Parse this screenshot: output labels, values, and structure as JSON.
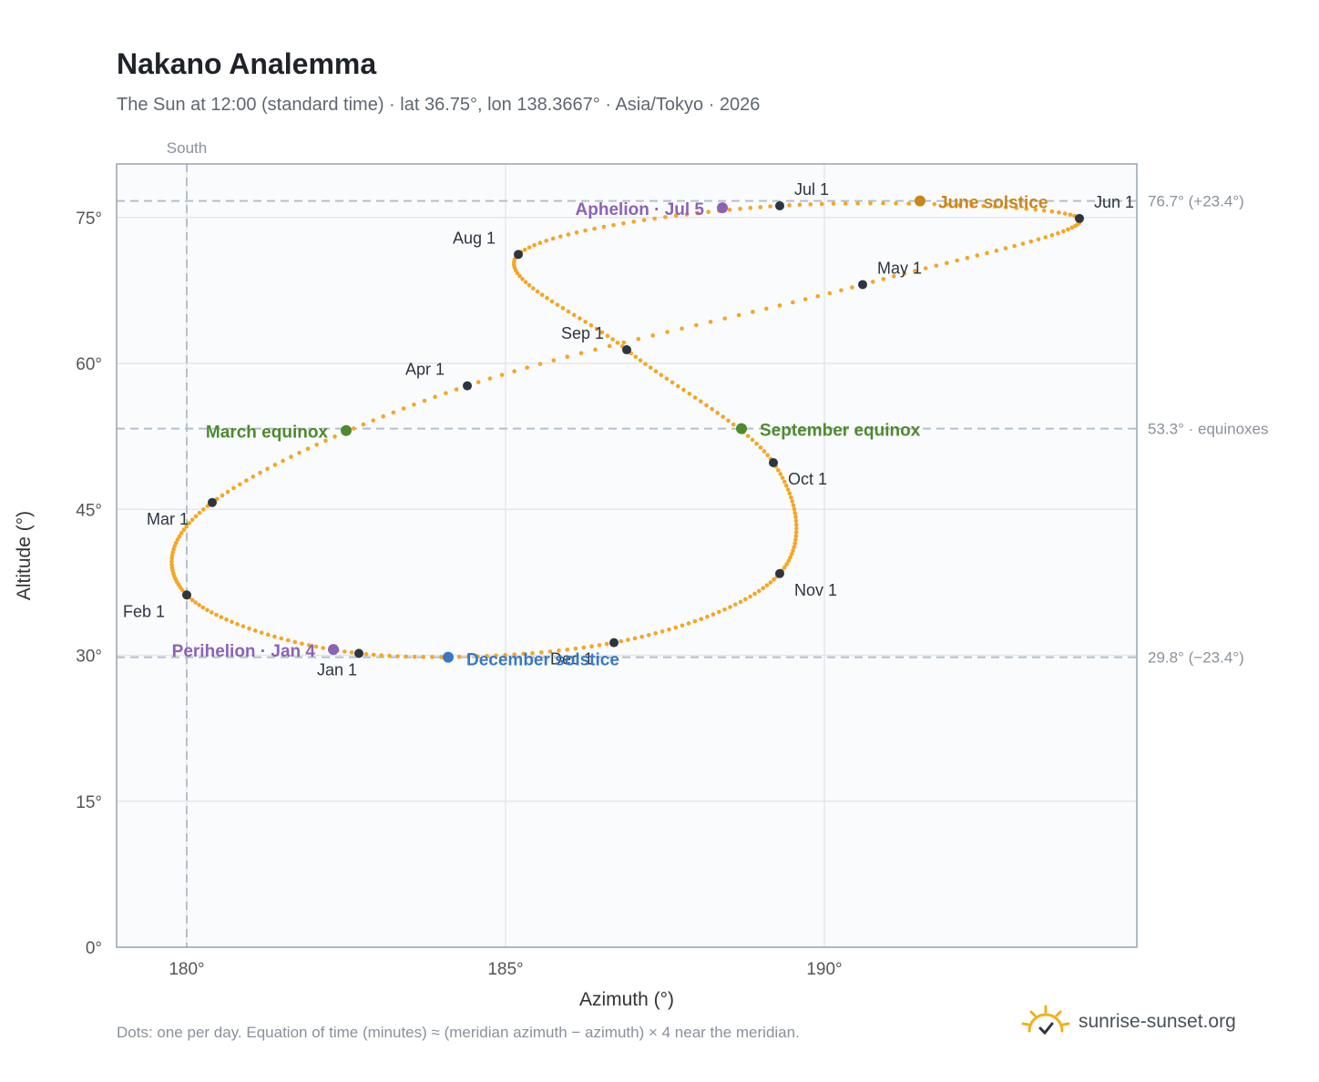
{
  "header": {
    "title": "Nakano Analemma",
    "subtitle": "The Sun at 12:00 (standard time) · lat 36.75°, lon 138.3667° · Asia/Tokyo · 2026"
  },
  "footer": {
    "note": "Dots: one per day. Equation of time (minutes) ≈ (meridian azimuth − azimuth) × 4 near the meridian.",
    "brand": "sunrise-sunset.org",
    "brand_icon": "sun-icon"
  },
  "chart_data": {
    "type": "scatter",
    "title": "Nakano Analemma",
    "xlabel": "Azimuth (°)",
    "ylabel": "Altitude (°)",
    "xlim": [
      178.9,
      194.9
    ],
    "ylim": [
      0,
      80.5
    ],
    "x_ticks": [
      180,
      185,
      190
    ],
    "x_tick_labels": [
      "180°",
      "185°",
      "190°"
    ],
    "y_ticks": [
      0,
      15,
      30,
      45,
      60,
      75
    ],
    "y_tick_labels": [
      "0°",
      "15°",
      "30°",
      "45°",
      "60°",
      "75°"
    ],
    "grid": true,
    "meridian": {
      "azimuth": 180,
      "label": "South"
    },
    "reference_lines": [
      {
        "altitude": 76.7,
        "label": "76.7° (+23.4°)"
      },
      {
        "altitude": 53.3,
        "label": "53.3° · equinoxes"
      },
      {
        "altitude": 29.8,
        "label": "29.8° (−23.4°)"
      }
    ],
    "colors": {
      "daily_dot": "#f5a623",
      "month_marker": "#2d3540",
      "solstice_june": "#c9861a",
      "solstice_december": "#3a78c2",
      "equinox": "#4e8a2e",
      "apsis": "#8c62b5",
      "grid": "#e3e7ec",
      "reference": "#b4c0cc",
      "plot_bg": "#fafbfd",
      "frame": "#9aa3ae"
    },
    "month_markers": [
      {
        "label": "Jan 1",
        "az": 182.7,
        "alt": 30.2
      },
      {
        "label": "Feb 1",
        "az": 180.0,
        "alt": 36.2
      },
      {
        "label": "Mar 1",
        "az": 180.4,
        "alt": 45.7
      },
      {
        "label": "Apr 1",
        "az": 184.4,
        "alt": 57.7
      },
      {
        "label": "May 1",
        "az": 190.6,
        "alt": 68.1
      },
      {
        "label": "Jun 1",
        "az": 194.0,
        "alt": 74.9
      },
      {
        "label": "Jul 1",
        "az": 189.3,
        "alt": 76.2
      },
      {
        "label": "Aug 1",
        "az": 185.2,
        "alt": 71.2
      },
      {
        "label": "Sep 1",
        "az": 186.9,
        "alt": 61.4
      },
      {
        "label": "Oct 1",
        "az": 189.2,
        "alt": 49.8
      },
      {
        "label": "Nov 1",
        "az": 189.3,
        "alt": 38.4
      },
      {
        "label": "Dec 1",
        "az": 186.7,
        "alt": 31.3
      }
    ],
    "events": [
      {
        "label": "June solstice",
        "kind": "solstice_june",
        "az": 191.5,
        "alt": 76.7
      },
      {
        "label": "December solstice",
        "kind": "solstice_december",
        "az": 184.1,
        "alt": 29.8
      },
      {
        "label": "March equinox",
        "kind": "equinox",
        "az": 182.5,
        "alt": 53.1
      },
      {
        "label": "September equinox",
        "kind": "equinox",
        "az": 188.7,
        "alt": 53.3
      },
      {
        "label": "Aphelion · Jul 5",
        "kind": "apsis",
        "az": 188.4,
        "alt": 76.0
      },
      {
        "label": "Perihelion · Jan 4",
        "kind": "apsis",
        "az": 182.3,
        "alt": 30.6
      }
    ]
  }
}
